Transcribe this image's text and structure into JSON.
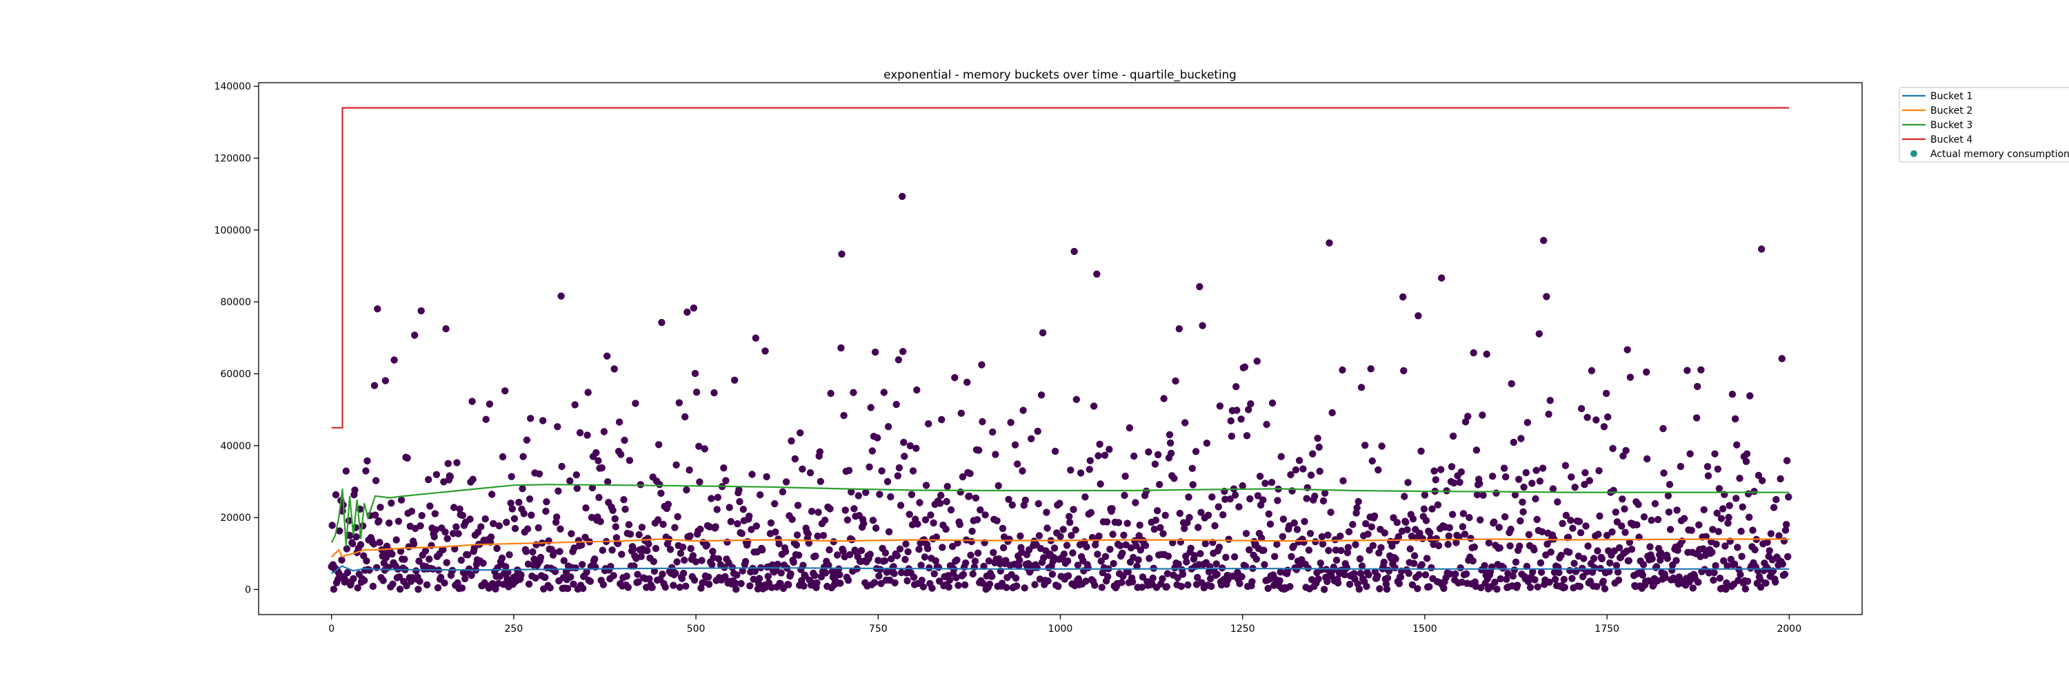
{
  "chart_data": {
    "type": "line",
    "title": "exponential - memory buckets over time - quartile_bucketing",
    "xlabel": "",
    "ylabel": "",
    "xlim": [
      -100,
      2100
    ],
    "ylim": [
      -7000,
      141000
    ],
    "x_ticks": [
      0,
      250,
      500,
      750,
      1000,
      1250,
      1500,
      1750,
      2000
    ],
    "y_ticks": [
      0,
      20000,
      40000,
      60000,
      80000,
      100000,
      120000,
      140000
    ],
    "grid": false,
    "legend_position": "outside-top-right",
    "series": [
      {
        "name": "Bucket 1",
        "color": "#1f77b4",
        "points": [
          [
            0,
            4500
          ],
          [
            5,
            5000
          ],
          [
            10,
            6000
          ],
          [
            15,
            6500
          ],
          [
            20,
            6000
          ],
          [
            30,
            5200
          ],
          [
            45,
            5800
          ],
          [
            60,
            5600
          ],
          [
            100,
            5500
          ],
          [
            200,
            5400
          ],
          [
            300,
            5600
          ],
          [
            400,
            5800
          ],
          [
            500,
            5900
          ],
          [
            600,
            6000
          ],
          [
            700,
            5900
          ],
          [
            800,
            5800
          ],
          [
            900,
            5700
          ],
          [
            1000,
            5700
          ],
          [
            1100,
            5700
          ],
          [
            1200,
            5800
          ],
          [
            1300,
            5800
          ],
          [
            1400,
            5700
          ],
          [
            1500,
            5700
          ],
          [
            1600,
            5700
          ],
          [
            1700,
            5700
          ],
          [
            1800,
            5700
          ],
          [
            1900,
            5700
          ],
          [
            2000,
            5700
          ]
        ]
      },
      {
        "name": "Bucket 2",
        "color": "#ff7f0e",
        "points": [
          [
            0,
            9000
          ],
          [
            5,
            10000
          ],
          [
            10,
            11000
          ],
          [
            15,
            9000
          ],
          [
            20,
            9500
          ],
          [
            30,
            10000
          ],
          [
            45,
            11000
          ],
          [
            60,
            11000
          ],
          [
            100,
            11500
          ],
          [
            150,
            11800
          ],
          [
            200,
            12500
          ],
          [
            300,
            13000
          ],
          [
            400,
            13500
          ],
          [
            450,
            14000
          ],
          [
            500,
            13500
          ],
          [
            600,
            13800
          ],
          [
            700,
            13500
          ],
          [
            800,
            13800
          ],
          [
            900,
            13600
          ],
          [
            1000,
            13600
          ],
          [
            1100,
            13800
          ],
          [
            1200,
            13700
          ],
          [
            1300,
            13500
          ],
          [
            1400,
            13600
          ],
          [
            1500,
            13800
          ],
          [
            1600,
            14000
          ],
          [
            1700,
            13800
          ],
          [
            1800,
            13900
          ],
          [
            1900,
            14000
          ],
          [
            2000,
            14000
          ]
        ]
      },
      {
        "name": "Bucket 3",
        "color": "#2ca02c",
        "points": [
          [
            0,
            13000
          ],
          [
            5,
            15000
          ],
          [
            10,
            20000
          ],
          [
            15,
            28000
          ],
          [
            20,
            12000
          ],
          [
            25,
            26000
          ],
          [
            30,
            15000
          ],
          [
            35,
            25000
          ],
          [
            40,
            14000
          ],
          [
            45,
            24000
          ],
          [
            50,
            20000
          ],
          [
            60,
            26000
          ],
          [
            80,
            25500
          ],
          [
            100,
            26000
          ],
          [
            150,
            27000
          ],
          [
            200,
            28000
          ],
          [
            250,
            29000
          ],
          [
            300,
            29200
          ],
          [
            400,
            29000
          ],
          [
            500,
            28800
          ],
          [
            600,
            28500
          ],
          [
            700,
            28000
          ],
          [
            800,
            27600
          ],
          [
            900,
            27500
          ],
          [
            1000,
            27500
          ],
          [
            1100,
            27500
          ],
          [
            1200,
            27800
          ],
          [
            1300,
            28000
          ],
          [
            1400,
            27500
          ],
          [
            1500,
            27300
          ],
          [
            1600,
            27200
          ],
          [
            1700,
            27000
          ],
          [
            1800,
            27000
          ],
          [
            1900,
            27000
          ],
          [
            2000,
            27000
          ]
        ]
      },
      {
        "name": "Bucket 4",
        "color": "#d62728",
        "points": [
          [
            0,
            45000
          ],
          [
            15,
            45000
          ],
          [
            15,
            134000
          ],
          [
            2000,
            134000
          ]
        ]
      },
      {
        "name": "Actual memory consumption",
        "color": "#440154",
        "legend_color": "#21918c",
        "kind": "scatter",
        "count": 2000
      }
    ]
  }
}
